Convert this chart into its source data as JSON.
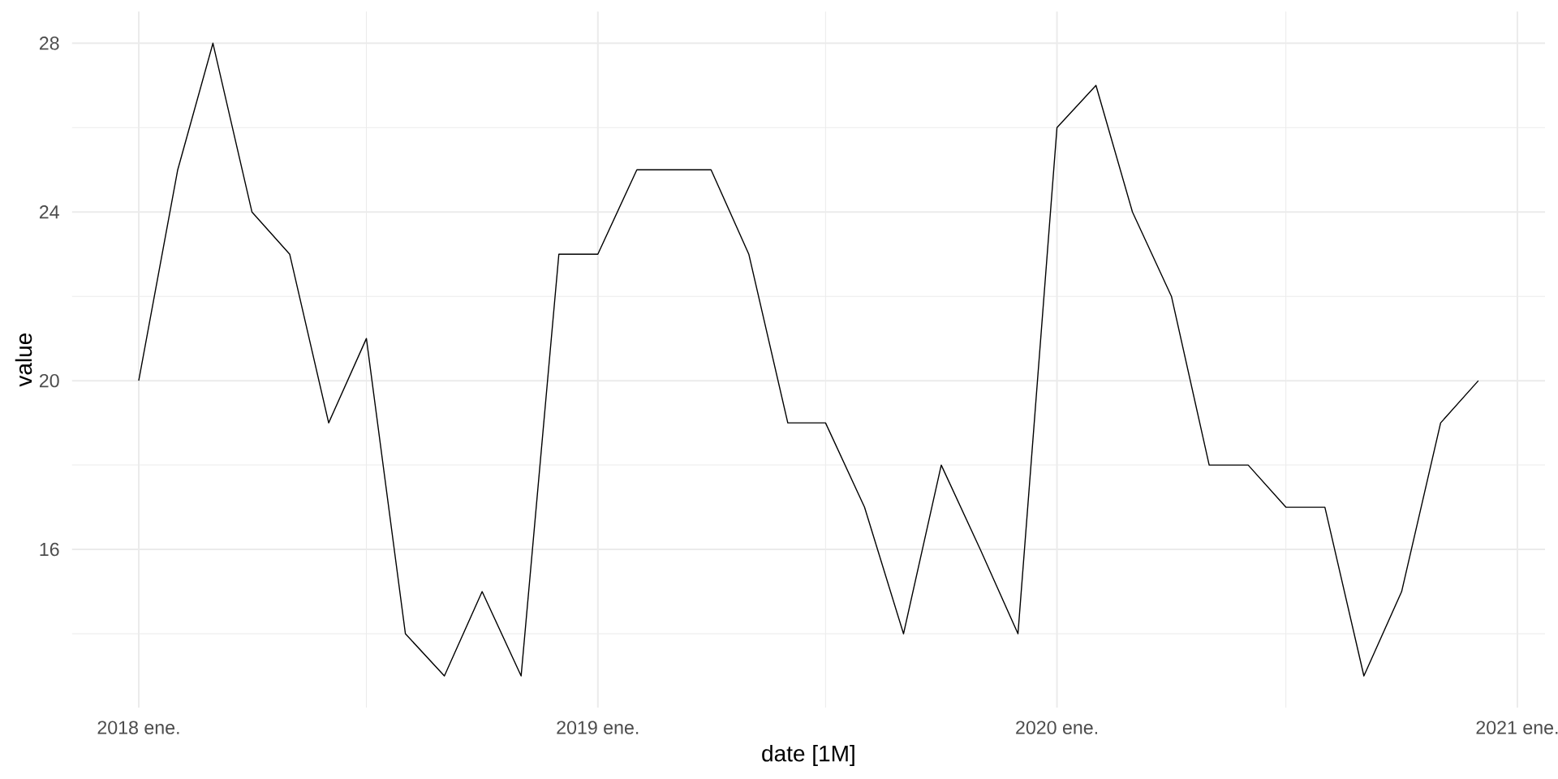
{
  "chart_data": {
    "type": "line",
    "xlabel": "date [1M]",
    "ylabel": "value",
    "x": [
      "2018-01",
      "2018-02",
      "2018-03",
      "2018-04",
      "2018-05",
      "2018-06",
      "2018-07",
      "2018-08",
      "2018-09",
      "2018-10",
      "2018-11",
      "2018-12",
      "2019-01",
      "2019-02",
      "2019-03",
      "2019-04",
      "2019-05",
      "2019-06",
      "2019-07",
      "2019-08",
      "2019-09",
      "2019-10",
      "2019-11",
      "2019-12",
      "2020-01",
      "2020-02",
      "2020-03",
      "2020-04",
      "2020-05",
      "2020-06",
      "2020-07",
      "2020-08",
      "2020-09",
      "2020-10",
      "2020-11",
      "2020-12"
    ],
    "series": [
      {
        "color": "#000000",
        "values": [
          20,
          25,
          28,
          24,
          23,
          19,
          21,
          14,
          13,
          15,
          13,
          23,
          23,
          25,
          25,
          25,
          23,
          19,
          19,
          17,
          14,
          18,
          16,
          14,
          26,
          27,
          24,
          22,
          18,
          18,
          17,
          17,
          13,
          15,
          19,
          20
        ]
      }
    ],
    "xlim": [
      "2017-11-09",
      "2021-01-23"
    ],
    "ylim": [
      12.25,
      28.75
    ],
    "xticks": [
      {
        "value": "2018-01-01",
        "label": "2018 ene."
      },
      {
        "value": "2018-07-01",
        "label": null
      },
      {
        "value": "2019-01-01",
        "label": "2019 ene."
      },
      {
        "value": "2019-07-01",
        "label": null
      },
      {
        "value": "2020-01-01",
        "label": "2020 ene."
      },
      {
        "value": "2020-07-01",
        "label": null
      },
      {
        "value": "2021-01-01",
        "label": "2021 ene."
      }
    ],
    "yticks": [
      {
        "value": 14,
        "label": null
      },
      16,
      {
        "value": 18,
        "label": null
      },
      20,
      {
        "value": 22,
        "label": null
      },
      24,
      {
        "value": 26,
        "label": null
      },
      28
    ],
    "grid": true
  }
}
